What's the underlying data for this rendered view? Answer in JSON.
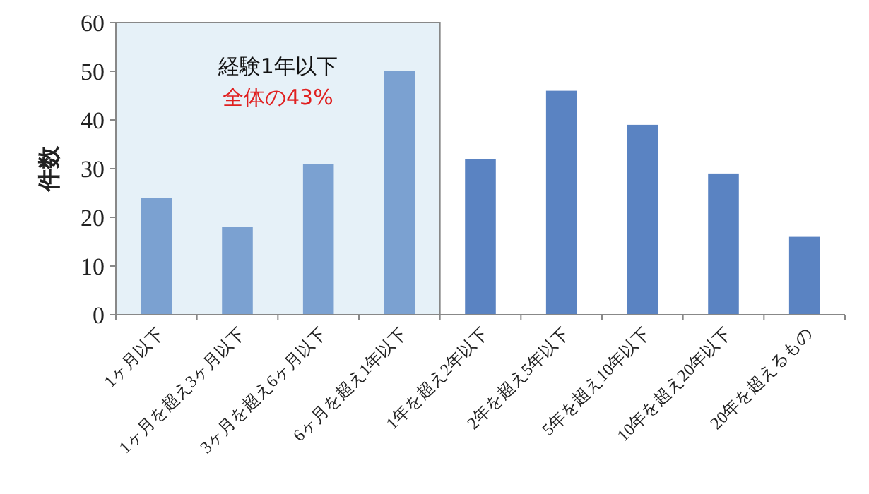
{
  "chart_data": {
    "type": "bar",
    "ylabel": "件数",
    "categories": [
      "1ヶ月以下",
      "1ヶ月を超え3ヶ月以下",
      "3ヶ月を超え6ヶ月以下",
      "6ヶ月を超え1年以下",
      "1年を超え2年以下",
      "2年を超え5年以下",
      "5年を超え10年以下",
      "10年を超え20年以下",
      "20年を超えるもの"
    ],
    "values": [
      24,
      18,
      31,
      50,
      32,
      46,
      39,
      29,
      16
    ],
    "colors": [
      "#7ba1d1",
      "#7ba1d1",
      "#7ba1d1",
      "#7ba1d1",
      "#5a83c2",
      "#5a83c2",
      "#5a83c2",
      "#5a83c2",
      "#5a83c2"
    ],
    "ylim": [
      0,
      60
    ],
    "yticks": [
      0,
      10,
      20,
      30,
      40,
      50,
      60
    ],
    "grid": false,
    "bands": [
      {
        "axis": "x",
        "from": "1ヶ月以下",
        "to": "6ヶ月を超え1年以下",
        "color": "#e6f1f8",
        "label": "経験1年以下"
      }
    ],
    "annotations": [
      "全体の43%"
    ]
  }
}
